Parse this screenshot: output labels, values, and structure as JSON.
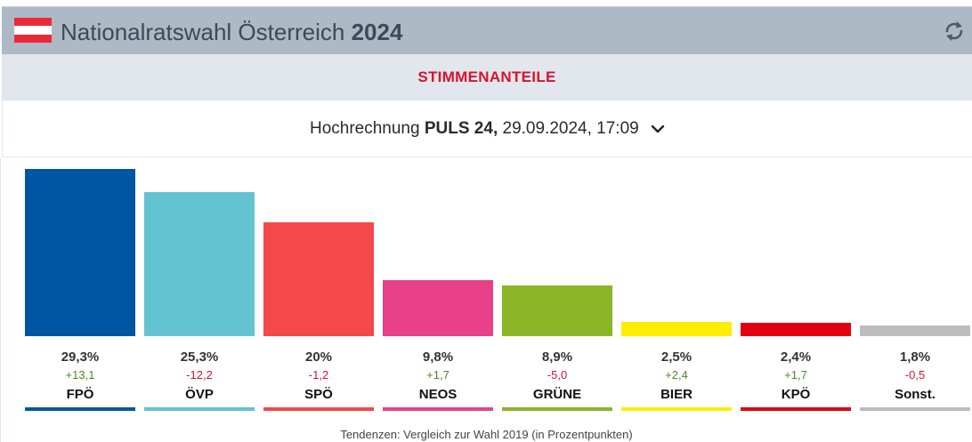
{
  "header": {
    "title_main": "Nationalratswahl Österreich",
    "title_year": "2024",
    "flag_colors": [
      "#ed2939",
      "#ffffff",
      "#ed2939"
    ],
    "refresh_icon": "refresh-icon"
  },
  "subbar": {
    "label": "STIMMENANTEILE"
  },
  "selector": {
    "prefix": "Hochrechnung ",
    "source": "PULS 24,",
    "datetime": " 29.09.2024, 17:09"
  },
  "chart_data": {
    "type": "bar",
    "categories": [
      "FPÖ",
      "ÖVP",
      "SPÖ",
      "NEOS",
      "GRÜNE",
      "BIER",
      "KPÖ",
      "Sonst."
    ],
    "values": [
      29.3,
      25.3,
      20,
      9.8,
      8.9,
      2.5,
      2.4,
      1.8
    ],
    "value_labels": [
      "29,3%",
      "25,3%",
      "20%",
      "9,8%",
      "8,9%",
      "2,5%",
      "2,4%",
      "1,8%"
    ],
    "differences": [
      "+13,1",
      "-12,2",
      "-1,2",
      "+1,7",
      "-5,0",
      "+2,4",
      "+1,7",
      "-0,5"
    ],
    "colors": [
      "#0056a2",
      "#63c3d1",
      "#f4484b",
      "#e84188",
      "#8ab526",
      "#ffed00",
      "#e3000f",
      "#bdbdbd"
    ],
    "positive_color": "#4a8a1e",
    "negative_color": "#d9112e",
    "ylim": [
      0,
      29.3
    ],
    "footnote": "Tendenzen: Vergleich zur Wahl 2019 (in Prozentpunkten)"
  }
}
